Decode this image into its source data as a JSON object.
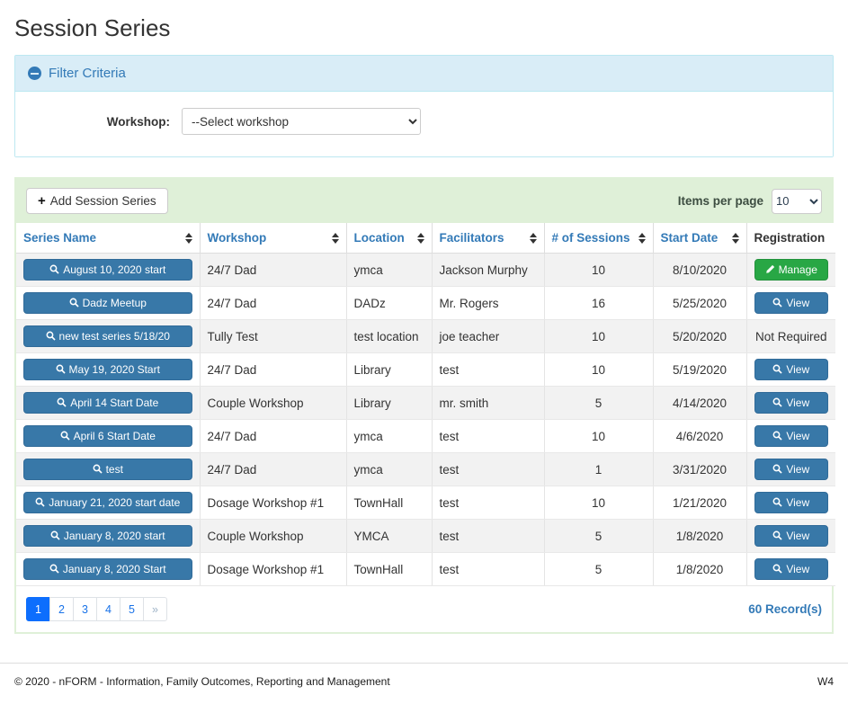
{
  "page": {
    "title": "Session Series"
  },
  "filter": {
    "title": "Filter Criteria",
    "workshop_label": "Workshop:",
    "workshop_selected": "--Select workshop"
  },
  "toolbar": {
    "add_button_label": "Add Session Series",
    "items_per_page_label": "Items per page",
    "items_per_page_value": "10"
  },
  "table": {
    "columns": [
      {
        "label": "Series Name",
        "sortable": true
      },
      {
        "label": "Workshop",
        "sortable": true
      },
      {
        "label": "Location",
        "sortable": true
      },
      {
        "label": "Facilitators",
        "sortable": true
      },
      {
        "label": "# of Sessions",
        "sortable": true
      },
      {
        "label": "Start Date",
        "sortable": true
      },
      {
        "label": "Registration",
        "sortable": false
      }
    ],
    "rows": [
      {
        "series_name": "August 10, 2020 start",
        "workshop": "24/7 Dad",
        "location": "ymca",
        "facilitators": "Jackson Murphy",
        "sessions": "10",
        "start_date": "8/10/2020",
        "registration": {
          "type": "manage",
          "label": "Manage"
        }
      },
      {
        "series_name": "Dadz Meetup",
        "workshop": "24/7 Dad",
        "location": "DADz",
        "facilitators": "Mr. Rogers",
        "sessions": "16",
        "start_date": "5/25/2020",
        "registration": {
          "type": "view",
          "label": "View"
        }
      },
      {
        "series_name": "new test series 5/18/20",
        "workshop": "Tully Test",
        "location": "test location",
        "facilitators": "joe teacher",
        "sessions": "10",
        "start_date": "5/20/2020",
        "registration": {
          "type": "text",
          "label": "Not Required"
        }
      },
      {
        "series_name": "May 19, 2020 Start",
        "workshop": "24/7 Dad",
        "location": "Library",
        "facilitators": "test",
        "sessions": "10",
        "start_date": "5/19/2020",
        "registration": {
          "type": "view",
          "label": "View"
        }
      },
      {
        "series_name": "April 14 Start Date",
        "workshop": "Couple Workshop",
        "location": "Library",
        "facilitators": "mr. smith",
        "sessions": "5",
        "start_date": "4/14/2020",
        "registration": {
          "type": "view",
          "label": "View"
        }
      },
      {
        "series_name": "April 6 Start Date",
        "workshop": "24/7 Dad",
        "location": "ymca",
        "facilitators": "test",
        "sessions": "10",
        "start_date": "4/6/2020",
        "registration": {
          "type": "view",
          "label": "View"
        }
      },
      {
        "series_name": "test",
        "workshop": "24/7 Dad",
        "location": "ymca",
        "facilitators": "test",
        "sessions": "1",
        "start_date": "3/31/2020",
        "registration": {
          "type": "view",
          "label": "View"
        }
      },
      {
        "series_name": "January 21, 2020 start date",
        "workshop": "Dosage Workshop #1",
        "location": "TownHall",
        "facilitators": "test",
        "sessions": "10",
        "start_date": "1/21/2020",
        "registration": {
          "type": "view",
          "label": "View"
        }
      },
      {
        "series_name": "January 8, 2020 start",
        "workshop": "Couple Workshop",
        "location": "YMCA",
        "facilitators": "test",
        "sessions": "5",
        "start_date": "1/8/2020",
        "registration": {
          "type": "view",
          "label": "View"
        }
      },
      {
        "series_name": "January 8, 2020 Start",
        "workshop": "Dosage Workshop #1",
        "location": "TownHall",
        "facilitators": "test",
        "sessions": "5",
        "start_date": "1/8/2020",
        "registration": {
          "type": "view",
          "label": "View"
        }
      }
    ]
  },
  "pagination": {
    "pages": [
      "1",
      "2",
      "3",
      "4",
      "5",
      "»"
    ],
    "active": "1",
    "records_text": "60 Record(s)"
  },
  "footer": {
    "copyright": "© 2020 - nFORM - Information, Family Outcomes, Reporting and Management",
    "environment": "W4"
  },
  "colors": {
    "filter_header_bg": "#d9edf7",
    "filter_accent": "#337ab7",
    "toolbar_bg": "#dff0d8",
    "action_blue": "#3878a8",
    "action_green": "#28a745",
    "pagination_active": "#0d6efd"
  }
}
